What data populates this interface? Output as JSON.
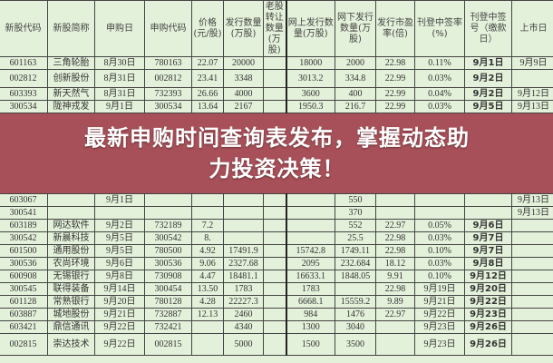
{
  "table": {
    "headers": [
      "新股代码",
      "新股简称",
      "申购日",
      "申购代码",
      "价格(元/股)",
      "发行数量(万股)",
      "老股转让数量(万股)",
      "网上发行数量(万股)",
      "网下发行数量(万股)",
      "发行市盈率(倍)",
      "刊登中签率(%)",
      "刊登中签号（缴款日）",
      "上市日"
    ],
    "rows": [
      [
        "601163",
        "三角轮胎",
        "8月30日",
        "780163",
        "22.07",
        "20000",
        "",
        "18000",
        "2000",
        "22.98",
        "0.11%",
        "9月1日",
        "9月9日"
      ],
      [
        "002812",
        "创新股份",
        "8月31日",
        "002812",
        "23.41",
        "3348",
        "",
        "3013.2",
        "334.8",
        "22.99",
        "0.03%",
        "9月2日",
        ""
      ],
      [
        "603393",
        "新天然气",
        "8月31日",
        "732393",
        "26.66",
        "4000",
        "",
        "3600",
        "400",
        "22.99",
        "0.04%",
        "9月2日",
        "9月12日"
      ],
      [
        "300534",
        "陇神戎发",
        "9月1日",
        "300534",
        "13.64",
        "2167",
        "",
        "1950.3",
        "216.7",
        "22.99",
        "0.03%",
        "9月5日",
        "9月13日"
      ],
      [
        "603067",
        "",
        "9月1日",
        "",
        "",
        "",
        "",
        "",
        "550",
        "",
        "",
        "",
        "9月13日"
      ],
      [
        "300541",
        "",
        "",
        "",
        "",
        "",
        "",
        "",
        "370",
        "",
        "",
        "",
        "9月13日"
      ],
      [
        "603189",
        "网达软件",
        "9月2日",
        "732189",
        "7.2",
        "",
        "",
        "",
        "552",
        "22.97",
        "0.05%",
        "9月6日",
        ""
      ],
      [
        "300542",
        "新晨科技",
        "9月5日",
        "300542",
        "8.",
        "",
        "",
        "",
        "25.5",
        "22.98",
        "0.03%",
        "9月7日",
        ""
      ],
      [
        "601500",
        "通用股份",
        "9月5日",
        "780500",
        "4.92",
        "17491.9",
        "",
        "15742.8",
        "1749.11",
        "22.98",
        "0.10%",
        "9月7日",
        ""
      ],
      [
        "300536",
        "农尚环境",
        "9月6日",
        "300536",
        "9.06",
        "2327.68",
        "",
        "2095",
        "232.684",
        "18.12",
        "0.03%",
        "9月8日",
        ""
      ],
      [
        "600908",
        "无锡银行",
        "9月8日",
        "730908",
        "4.47",
        "18481.1",
        "",
        "16633.1",
        "1848.05",
        "9.91",
        "0.10%",
        "9月12日",
        ""
      ],
      [
        "300545",
        "联得装备",
        "9月14日",
        "300454",
        "13.50",
        "1783",
        "",
        "1783",
        "",
        "22.98",
        "9月19日",
        "9月20日",
        ""
      ],
      [
        "601128",
        "常熟银行",
        "9月20日",
        "780128",
        "4.28",
        "22227.3",
        "",
        "6668.1",
        "15559.2",
        "9.89",
        "9月21日",
        "9月22日",
        ""
      ],
      [
        "603887",
        "城地股份",
        "9月21日",
        "732887",
        "12.13",
        "2460",
        "",
        "984",
        "1476",
        "22.97",
        "9月22日",
        "9月23日",
        ""
      ],
      [
        "603421",
        "鼎信通讯",
        "9月22日",
        "732421",
        "",
        "4340",
        "",
        "1300",
        "3040",
        "",
        "9月23日",
        "9月26日",
        ""
      ],
      [
        "002815",
        "崇达技术",
        "9月22日",
        "002815",
        "",
        "5000",
        "",
        "1500",
        "3500",
        "",
        "9月23日",
        "9月26日",
        ""
      ]
    ]
  },
  "banner": {
    "line1": "最新申购时间查询表发布，掌握动态助",
    "line2": "力投资决策！",
    "color": "#9e3442"
  },
  "colors": {
    "background": "#e4f1da"
  }
}
